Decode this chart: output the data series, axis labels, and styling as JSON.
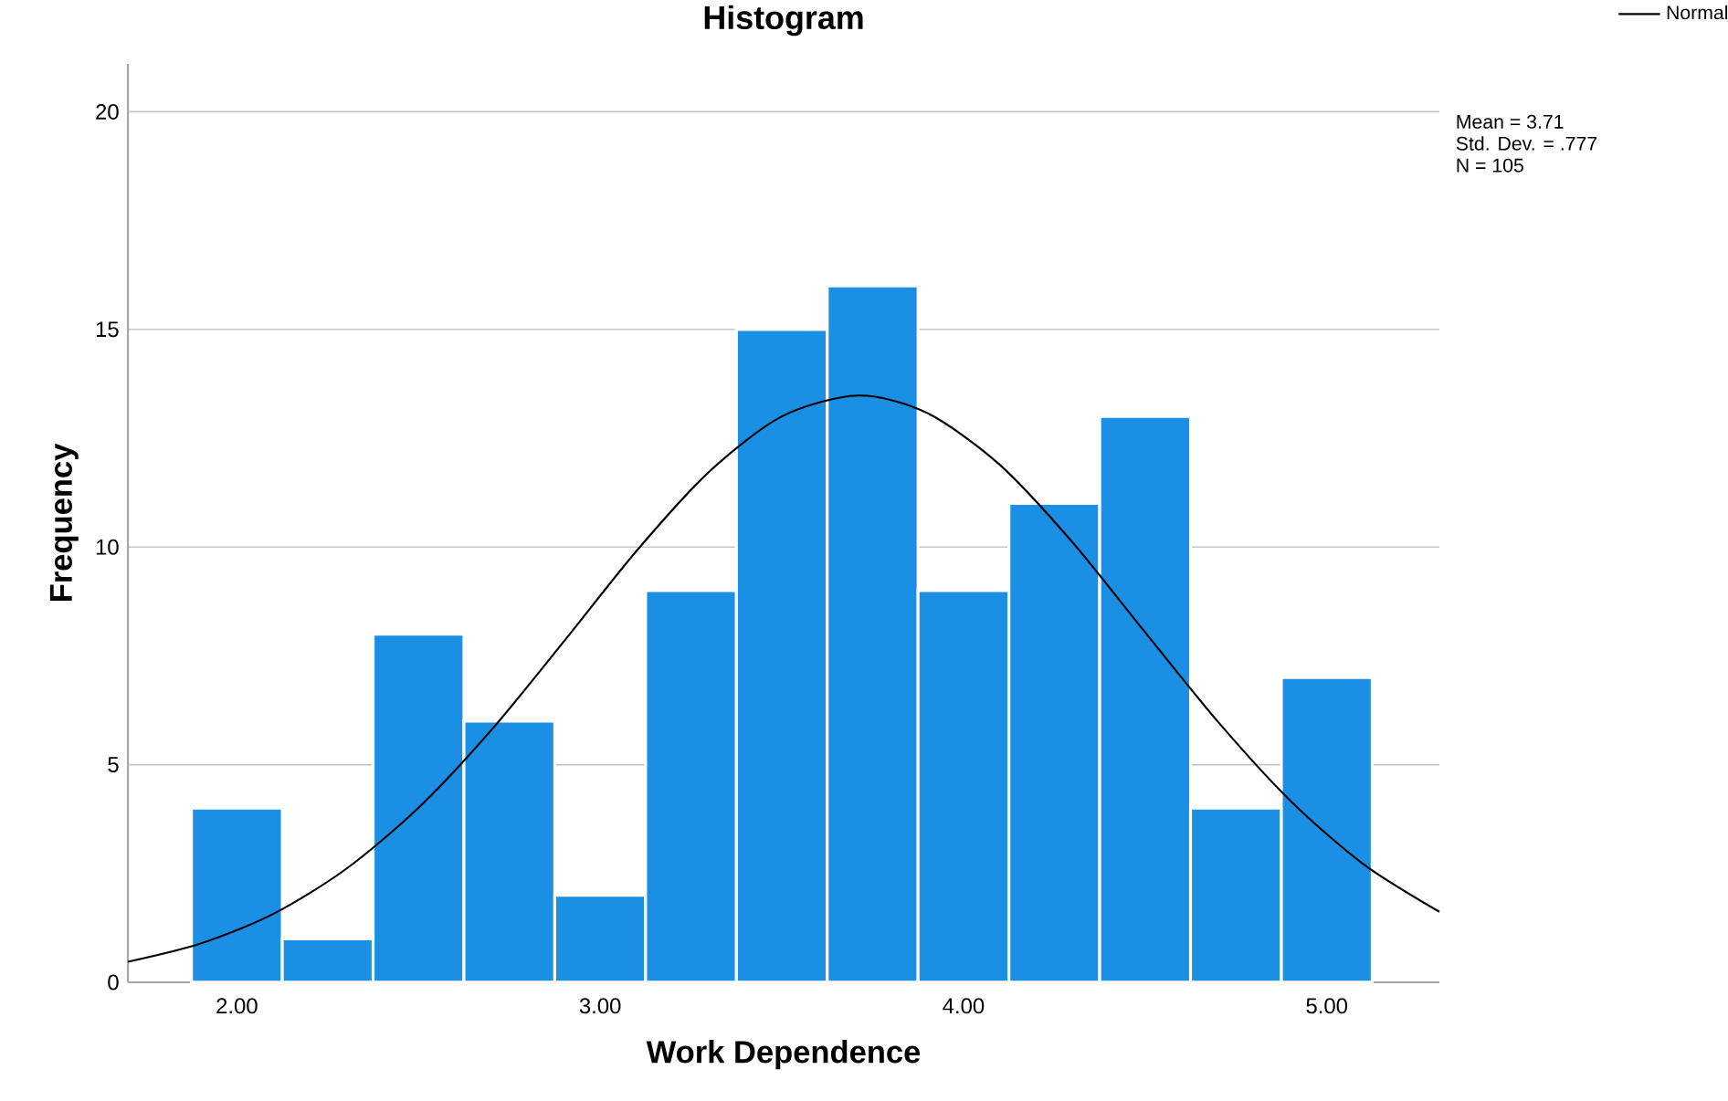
{
  "chart_data": {
    "type": "histogram",
    "title": "Histogram",
    "xlabel": "Work Dependence",
    "ylabel": "Frequency",
    "bins": [
      1.875,
      2.125,
      2.375,
      2.625,
      2.875,
      3.125,
      3.375,
      3.625,
      3.875,
      4.125,
      4.375,
      4.625,
      4.875,
      5.125
    ],
    "values": [
      4,
      1,
      8,
      6,
      2,
      9,
      15,
      16,
      9,
      11,
      13,
      4,
      7
    ],
    "color": "#1a8fe3",
    "series": [
      {
        "name": "Normal",
        "type": "line",
        "color": "#000000",
        "x": [
          1.7,
          1.9,
          2.1,
          2.3,
          2.5,
          2.7,
          2.9,
          3.1,
          3.3,
          3.5,
          3.71,
          3.9,
          4.1,
          4.3,
          4.5,
          4.7,
          4.9,
          5.1,
          5.31
        ],
        "values": [
          0.47,
          0.89,
          1.57,
          2.6,
          4.01,
          5.79,
          7.83,
          9.91,
          11.73,
          13.0,
          13.48,
          13.08,
          11.89,
          10.11,
          8.04,
          5.99,
          4.17,
          2.72,
          1.62
        ]
      }
    ],
    "xlim": [
      1.7,
      5.31
    ],
    "ylim": [
      0,
      21.1
    ],
    "xticks": [
      {
        "value": 2,
        "label": "2.00"
      },
      {
        "value": 3,
        "label": "3.00"
      },
      {
        "value": 4,
        "label": "4.00"
      },
      {
        "value": 5,
        "label": "5.00"
      }
    ],
    "yticks": [
      0,
      5,
      10,
      15,
      20
    ],
    "grid": "y",
    "legend": "top right",
    "marker": "none",
    "line_style": "solid",
    "annotations": [
      "Mean = 3.71",
      "Std. Dev. = .777",
      "N = 105"
    ]
  }
}
